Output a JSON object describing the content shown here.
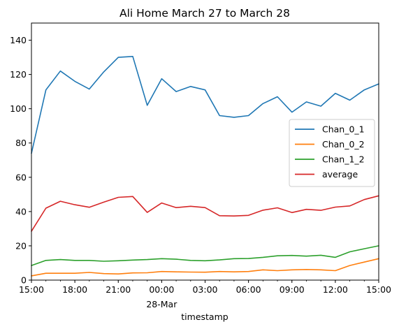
{
  "chart_data": {
    "type": "line",
    "title": "Ali Home March 27 to March 28",
    "xlabel": "timestamp",
    "ylabel": "",
    "xlim": [
      "2024-03-27T15:00",
      "2024-03-28T15:00"
    ],
    "ylim": [
      0,
      150
    ],
    "x": [
      "2024-03-27T15:00",
      "2024-03-27T16:00",
      "2024-03-27T17:00",
      "2024-03-27T18:00",
      "2024-03-27T19:00",
      "2024-03-27T20:00",
      "2024-03-27T21:00",
      "2024-03-27T22:00",
      "2024-03-27T23:00",
      "2024-03-28T00:00",
      "2024-03-28T01:00",
      "2024-03-28T02:00",
      "2024-03-28T03:00",
      "2024-03-28T04:00",
      "2024-03-28T05:00",
      "2024-03-28T06:00",
      "2024-03-28T07:00",
      "2024-03-28T08:00",
      "2024-03-28T09:00",
      "2024-03-28T10:00",
      "2024-03-28T11:00",
      "2024-03-28T12:00",
      "2024-03-28T13:00",
      "2024-03-28T14:00",
      "2024-03-28T15:00"
    ],
    "x_ticks": [
      {
        "label": "15:00",
        "sub": "",
        "x": "2024-03-27T15:00"
      },
      {
        "label": "18:00",
        "sub": "",
        "x": "2024-03-27T18:00"
      },
      {
        "label": "21:00",
        "sub": "",
        "x": "2024-03-27T21:00"
      },
      {
        "label": "00:00",
        "sub": "28-Mar",
        "x": "2024-03-28T00:00"
      },
      {
        "label": "03:00",
        "sub": "",
        "x": "2024-03-28T03:00"
      },
      {
        "label": "06:00",
        "sub": "",
        "x": "2024-03-28T06:00"
      },
      {
        "label": "09:00",
        "sub": "",
        "x": "2024-03-28T09:00"
      },
      {
        "label": "12:00",
        "sub": "",
        "x": "2024-03-28T12:00"
      },
      {
        "label": "15:00",
        "sub": "",
        "x": "2024-03-28T15:00"
      }
    ],
    "y_ticks": [
      0,
      20,
      40,
      60,
      80,
      100,
      120,
      140
    ],
    "grid": false,
    "legend": "center-right",
    "series": [
      {
        "name": "Chan_0_1",
        "color": "#1f77b4",
        "values": [
          74,
          111,
          122,
          116,
          111.5,
          121.5,
          130,
          130.5,
          102,
          117.5,
          110,
          113,
          111,
          96,
          95,
          96,
          103,
          107,
          98,
          104,
          101.5,
          109,
          105,
          111,
          114.5
        ]
      },
      {
        "name": "Chan_0_2",
        "color": "#ff7f0e",
        "values": [
          2.5,
          4,
          4,
          4,
          4.5,
          3.8,
          3.6,
          4.2,
          4.3,
          5,
          4.8,
          4.7,
          4.6,
          5,
          4.8,
          5,
          6,
          5.5,
          6,
          6.2,
          6,
          5.5,
          8.5,
          10.5,
          12.5
        ]
      },
      {
        "name": "Chan_1_2",
        "color": "#2ca02c",
        "values": [
          8.5,
          11.5,
          12,
          11.5,
          11.5,
          11,
          11.3,
          11.7,
          12,
          12.5,
          12.2,
          11.5,
          11.3,
          11.8,
          12.5,
          12.6,
          13.3,
          14.2,
          14.4,
          14,
          14.5,
          13.3,
          16.5,
          18.3,
          20
        ]
      },
      {
        "name": "average",
        "color": "#d62728",
        "values": [
          28.5,
          42,
          46,
          44,
          42.5,
          45.5,
          48.3,
          48.8,
          39.5,
          45,
          42.3,
          43.1,
          42.3,
          37.6,
          37.4,
          37.8,
          40.8,
          42.2,
          39.4,
          41.3,
          40.7,
          42.6,
          43.3,
          47,
          49.2
        ]
      }
    ]
  }
}
